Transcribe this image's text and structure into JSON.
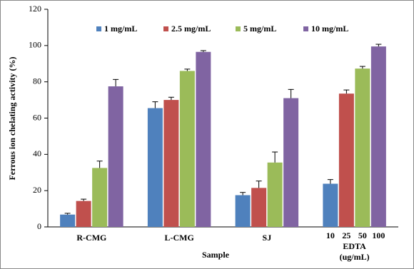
{
  "chart_data": {
    "type": "bar",
    "y_label": "Ferrous ion chelating activity (%)",
    "x_label": "Sample",
    "categories": [
      "R-CMG",
      "L-CMG",
      "SJ",
      "EDTA"
    ],
    "category_notes": {
      "EDTA_doses": [
        "10",
        "25",
        "50",
        "100"
      ],
      "EDTA_unit": "(ug/mL)"
    },
    "series": [
      {
        "name": "1 mg/mL",
        "color": "#4f81bd",
        "values": [
          6.8,
          65.5,
          17.5,
          23.8
        ],
        "errors": [
          0.7,
          3.5,
          1.5,
          2.3
        ]
      },
      {
        "name": "2.5 mg/mL",
        "color": "#c0504d",
        "values": [
          14.3,
          70,
          21.5,
          73.5
        ],
        "errors": [
          1,
          1.5,
          3.8,
          2
        ]
      },
      {
        "name": "5 mg/mL",
        "color": "#9bbb59",
        "values": [
          32.5,
          86,
          35.5,
          87.3
        ],
        "errors": [
          3.8,
          1,
          5.8,
          1.2
        ]
      },
      {
        "name": "10 mg/mL",
        "color": "#8064a2",
        "values": [
          77.5,
          96.5,
          71,
          99.5
        ],
        "errors": [
          3.8,
          0.7,
          4.8,
          1.2
        ]
      }
    ],
    "ylim": [
      0,
      120
    ],
    "yticks": [
      0,
      20,
      40,
      60,
      80,
      100,
      120
    ],
    "grid": false,
    "legend": "top"
  }
}
